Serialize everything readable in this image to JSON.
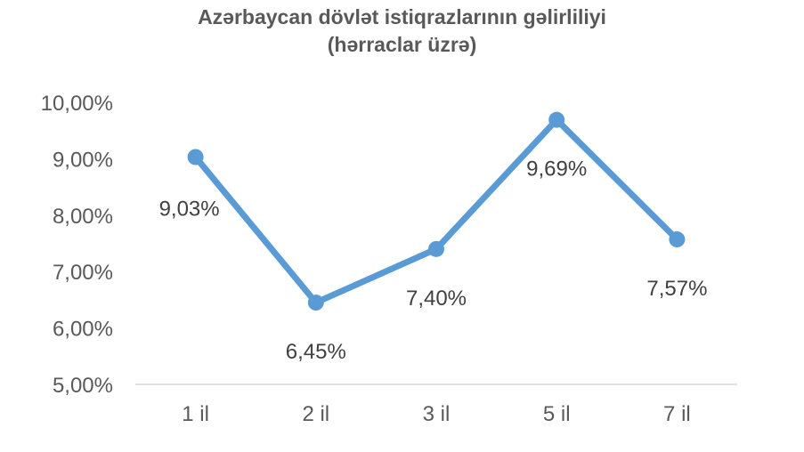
{
  "chart_data": {
    "type": "line",
    "title": "Azərbaycan dövlət istiqrazlarının gəlirliliyi",
    "subtitle": "(hərraclar üzrə)",
    "categories": [
      "1 il",
      "2 il",
      "3 il",
      "5 il",
      "7 il"
    ],
    "series": [
      {
        "values": [
          9.03,
          6.45,
          7.4,
          9.69,
          7.57
        ],
        "labels": [
          "9,03%",
          "6,45%",
          "7,40%",
          "9,69%",
          "7,57%"
        ],
        "color": "#5B9BD5"
      }
    ],
    "ylim": [
      5,
      10
    ],
    "yticks": [
      5,
      6,
      7,
      8,
      9,
      10
    ],
    "ytick_labels": [
      "5,00%",
      "6,00%",
      "7,00%",
      "8,00%",
      "9,00%",
      "10,00%"
    ],
    "xlabel": "",
    "ylabel": "",
    "grid": false,
    "legend": "none",
    "axis_color": "#D9D9D9",
    "text_color": "#595959"
  }
}
